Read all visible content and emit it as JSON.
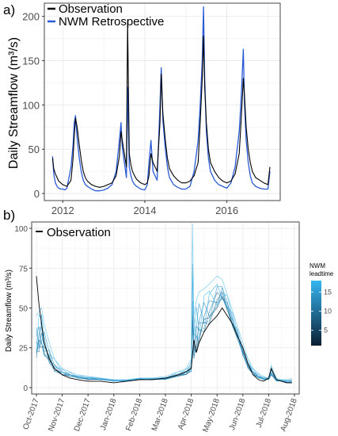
{
  "chart_data": [
    {
      "panel_label": "a)",
      "type": "line",
      "ylabel": "Daily Streamflow  (m³/s)",
      "xlabel": "",
      "xlim": [
        2011.55,
        2017.3
      ],
      "ylim": [
        -8,
        215
      ],
      "x_ticks": [
        2012,
        2014,
        2016
      ],
      "y_ticks": [
        0,
        50,
        100,
        150,
        200
      ],
      "grid": true,
      "legend_position": "top-left",
      "series": [
        {
          "name": "Observation",
          "color": "#000000",
          "x": [
            2011.75,
            2011.78,
            2011.82,
            2011.86,
            2011.9,
            2011.95,
            2012.0,
            2012.05,
            2012.1,
            2012.16,
            2012.2,
            2012.25,
            2012.28,
            2012.31,
            2012.35,
            2012.4,
            2012.45,
            2012.5,
            2012.55,
            2012.6,
            2012.7,
            2012.8,
            2012.9,
            2013.0,
            2013.1,
            2013.2,
            2013.3,
            2013.38,
            2013.42,
            2013.45,
            2013.5,
            2013.55,
            2013.58,
            2013.62,
            2013.66,
            2013.7,
            2013.75,
            2013.8,
            2013.9,
            2014.0,
            2014.06,
            2014.1,
            2014.15,
            2014.2,
            2014.3,
            2014.37,
            2014.4,
            2014.44,
            2014.5,
            2014.55,
            2014.6,
            2014.7,
            2014.8,
            2014.9,
            2015.0,
            2015.1,
            2015.2,
            2015.3,
            2015.35,
            2015.4,
            2015.43,
            2015.46,
            2015.5,
            2015.55,
            2015.6,
            2015.7,
            2015.8,
            2015.9,
            2016.0,
            2016.1,
            2016.2,
            2016.3,
            2016.35,
            2016.4,
            2016.43,
            2016.47,
            2016.52,
            2016.57,
            2016.62,
            2016.7,
            2016.8,
            2016.9,
            2017.0,
            2017.05
          ],
          "y": [
            40,
            28,
            22,
            18,
            14,
            12,
            10,
            9,
            8,
            12,
            15,
            40,
            65,
            85,
            75,
            55,
            38,
            25,
            18,
            14,
            10,
            8,
            7,
            8,
            10,
            12,
            20,
            42,
            70,
            60,
            45,
            30,
            195,
            45,
            32,
            25,
            20,
            16,
            12,
            10,
            12,
            20,
            45,
            35,
            25,
            80,
            135,
            90,
            60,
            40,
            28,
            20,
            15,
            12,
            12,
            14,
            20,
            35,
            80,
            130,
            178,
            120,
            80,
            50,
            35,
            25,
            18,
            14,
            12,
            14,
            22,
            45,
            85,
            130,
            110,
            75,
            50,
            35,
            25,
            18,
            15,
            12,
            10,
            30
          ]
        },
        {
          "name": "NWM Retrospective",
          "color": "#2a5bd7",
          "x": [
            2011.75,
            2011.78,
            2011.82,
            2011.86,
            2011.9,
            2011.95,
            2012.0,
            2012.05,
            2012.1,
            2012.16,
            2012.2,
            2012.25,
            2012.28,
            2012.31,
            2012.35,
            2012.4,
            2012.45,
            2012.5,
            2012.55,
            2012.6,
            2012.7,
            2012.8,
            2012.9,
            2013.0,
            2013.1,
            2013.2,
            2013.3,
            2013.38,
            2013.42,
            2013.45,
            2013.5,
            2013.55,
            2013.58,
            2013.62,
            2013.66,
            2013.7,
            2013.75,
            2013.8,
            2013.9,
            2014.0,
            2014.06,
            2014.1,
            2014.15,
            2014.2,
            2014.3,
            2014.37,
            2014.4,
            2014.44,
            2014.5,
            2014.55,
            2014.6,
            2014.7,
            2014.8,
            2014.9,
            2015.0,
            2015.1,
            2015.2,
            2015.3,
            2015.35,
            2015.4,
            2015.43,
            2015.46,
            2015.5,
            2015.55,
            2015.6,
            2015.7,
            2015.8,
            2015.9,
            2016.0,
            2016.1,
            2016.2,
            2016.3,
            2016.35,
            2016.4,
            2016.43,
            2016.47,
            2016.52,
            2016.57,
            2016.62,
            2016.7,
            2016.8,
            2016.9,
            2017.0,
            2017.05
          ],
          "y": [
            42,
            22,
            12,
            8,
            6,
            5,
            5,
            4,
            6,
            20,
            30,
            55,
            80,
            88,
            62,
            40,
            25,
            15,
            10,
            8,
            5,
            3,
            3,
            4,
            6,
            10,
            25,
            60,
            80,
            52,
            35,
            18,
            120,
            30,
            20,
            14,
            10,
            8,
            5,
            4,
            10,
            35,
            60,
            25,
            15,
            100,
            142,
            82,
            50,
            30,
            18,
            10,
            7,
            5,
            5,
            8,
            25,
            60,
            100,
            150,
            211,
            130,
            70,
            40,
            25,
            15,
            10,
            8,
            6,
            12,
            30,
            70,
            110,
            163,
            100,
            60,
            35,
            20,
            12,
            8,
            6,
            5,
            5,
            25
          ]
        }
      ]
    },
    {
      "panel_label": "b)",
      "type": "line",
      "ylabel": "Daily Streamflow  (m³/s)",
      "xlabel": "",
      "ylim": [
        -4,
        104
      ],
      "x_ticks": [
        "Oct-2017",
        "Nov-2017",
        "Dec-2017",
        "Jan-2018",
        "Feb-2018",
        "Mar-2018",
        "Apr-2018",
        "May-2018",
        "Jun-2018",
        "Jul-2018",
        "Aug-2018"
      ],
      "y_ticks": [
        0,
        25,
        50,
        75,
        100
      ],
      "grid": true,
      "legend_position": "top-left",
      "legend_series": "Observation",
      "colorbar": {
        "title_line1": "NWM",
        "title_line2": "leadtime",
        "ticks": [
          5,
          10,
          15
        ],
        "range": [
          1,
          18
        ],
        "color_low": "#0b1e33",
        "color_high": "#35b6f0"
      },
      "observation": {
        "color": "#000000",
        "x": [
          0,
          0.1,
          0.2,
          0.3,
          0.5,
          0.7,
          1.0,
          1.3,
          1.6,
          2.0,
          2.5,
          3.0,
          3.5,
          4.0,
          4.5,
          5.0,
          5.5,
          5.8,
          6.0,
          6.1,
          6.2,
          6.3,
          6.5,
          6.7,
          7.0,
          7.2,
          7.4,
          7.6,
          7.8,
          8.0,
          8.2,
          8.4,
          8.6,
          8.8,
          9.0,
          9.1,
          9.3,
          9.5,
          9.7,
          9.9
        ],
        "y": [
          70,
          52,
          40,
          28,
          18,
          12,
          8,
          6,
          5,
          4,
          4,
          3,
          4,
          5,
          5,
          6,
          8,
          10,
          12,
          30,
          22,
          28,
          35,
          40,
          45,
          50,
          45,
          40,
          32,
          25,
          15,
          8,
          5,
          4,
          6,
          12,
          5,
          4,
          3,
          3
        ]
      },
      "forecasts": {
        "color": "#2f7fb5",
        "x": [
          0,
          0.1,
          0.2,
          0.3,
          0.5,
          0.7,
          1.0,
          1.3,
          1.6,
          2.0,
          2.5,
          3.0,
          3.5,
          4.0,
          4.5,
          5.0,
          5.5,
          5.8,
          6.0,
          6.05,
          6.1,
          6.2,
          6.3,
          6.5,
          6.7,
          7.0,
          7.2,
          7.4,
          7.6,
          7.8,
          8.0,
          8.2,
          8.4,
          8.6,
          8.8,
          9.0,
          9.1,
          9.3,
          9.5,
          9.7,
          9.9
        ],
        "y_min": [
          18,
          22,
          25,
          20,
          15,
          10,
          8,
          7,
          6,
          5,
          5,
          4,
          4,
          5,
          5,
          5,
          7,
          8,
          10,
          20,
          18,
          22,
          28,
          35,
          40,
          50,
          55,
          48,
          38,
          30,
          20,
          12,
          8,
          6,
          5,
          5,
          8,
          4,
          4,
          3,
          3
        ],
        "y_max": [
          45,
          48,
          50,
          40,
          28,
          18,
          12,
          10,
          8,
          7,
          6,
          5,
          5,
          6,
          6,
          7,
          10,
          12,
          18,
          103,
          45,
          55,
          60,
          62,
          65,
          70,
          68,
          58,
          48,
          38,
          28,
          18,
          12,
          9,
          7,
          6,
          14,
          6,
          5,
          5,
          6
        ]
      }
    }
  ]
}
